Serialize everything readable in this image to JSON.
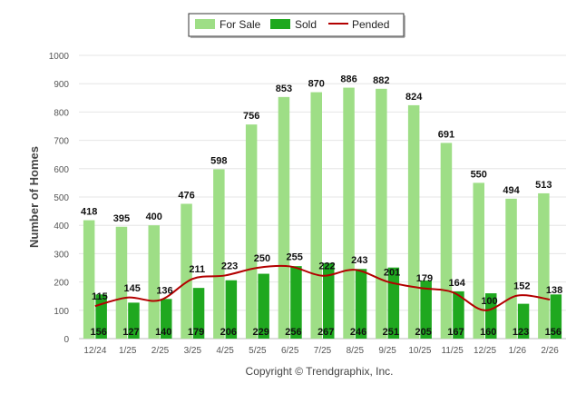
{
  "chart_data": {
    "type": "bar",
    "categories": [
      "12/24",
      "1/25",
      "2/25",
      "3/25",
      "4/25",
      "5/25",
      "6/25",
      "7/25",
      "8/25",
      "9/25",
      "10/25",
      "11/25",
      "12/25",
      "1/26",
      "2/26"
    ],
    "series": [
      {
        "name": "For Sale",
        "kind": "bar",
        "color": "#9ede86",
        "values": [
          418,
          395,
          400,
          476,
          598,
          756,
          853,
          870,
          886,
          882,
          824,
          691,
          550,
          494,
          513
        ]
      },
      {
        "name": "Sold",
        "kind": "bar",
        "color": "#1fa81f",
        "values": [
          156,
          127,
          140,
          179,
          206,
          229,
          256,
          267,
          246,
          251,
          205,
          167,
          160,
          123,
          156
        ]
      },
      {
        "name": "Pended",
        "kind": "line",
        "color": "#b30000",
        "values": [
          115,
          145,
          136,
          211,
          223,
          250,
          255,
          222,
          243,
          201,
          179,
          164,
          100,
          152,
          138
        ]
      }
    ],
    "title": "",
    "xlabel": "",
    "ylabel": "Number of Homes",
    "ylim": [
      0,
      1000
    ],
    "yticks": [
      0,
      100,
      200,
      300,
      400,
      500,
      600,
      700,
      800,
      900,
      1000
    ],
    "grid": true,
    "legend_position": "top-center",
    "credit": "Copyright © Trendgraphix, Inc."
  }
}
